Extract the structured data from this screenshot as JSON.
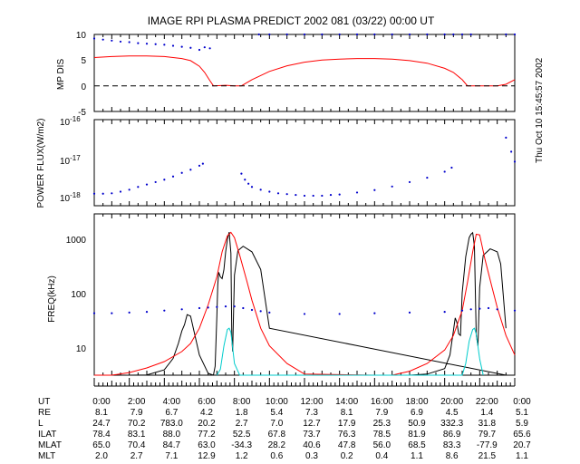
{
  "title": "IMAGE  RPI PLASMA PREDICT 2002 081 (03/22) 00:00 UT",
  "timestamp": "Thu Oct 10 15:45:57 2002",
  "colors": {
    "red": "#ff0000",
    "blue": "#0000cc",
    "cyan": "#00cccc",
    "black": "#000000"
  },
  "panel1": {
    "ylabel": "MP DIS",
    "yticks": [
      "10",
      "5",
      "0",
      "-5"
    ],
    "ylim": [
      -5,
      10
    ]
  },
  "panel2": {
    "ylabel": "POWER FLUX(W/m2)",
    "yticks": [
      {
        "base": "10",
        "exp": "-16"
      },
      {
        "base": "10",
        "exp": "-17"
      },
      {
        "base": "10",
        "exp": "-18"
      }
    ],
    "ylim_log": [
      -18.15,
      -16
    ]
  },
  "panel3": {
    "ylabel": "FREQ(kHz)",
    "yticks": [
      "1000",
      "100",
      "10"
    ],
    "ylim_log": [
      0.5,
      3.25
    ]
  },
  "axis": {
    "xlim": [
      0,
      24
    ],
    "xtick_labels": [
      "0:00",
      "2:00",
      "4:00",
      "6:00",
      "8:00",
      "10:00",
      "12:00",
      "14:00",
      "16:00",
      "18:00",
      "20:00",
      "22:00",
      "0:00"
    ]
  },
  "orbit_table": {
    "rows": [
      {
        "label": "UT",
        "values": [
          "0:00",
          "2:00",
          "4:00",
          "6:00",
          "8:00",
          "10:00",
          "12:00",
          "14:00",
          "16:00",
          "18:00",
          "20:00",
          "22:00",
          "0:00"
        ]
      },
      {
        "label": "RE",
        "values": [
          "8.1",
          "7.9",
          "6.7",
          "4.2",
          "1.8",
          "5.4",
          "7.3",
          "8.1",
          "7.9",
          "6.9",
          "4.5",
          "1.4",
          "5.1"
        ]
      },
      {
        "label": "L",
        "values": [
          "24.7",
          "70.2",
          "783.0",
          "20.2",
          "2.7",
          "7.0",
          "12.7",
          "17.9",
          "25.3",
          "50.9",
          "332.3",
          "31.8",
          "5.9"
        ]
      },
      {
        "label": "ILAT",
        "values": [
          "78.4",
          "83.1",
          "88.0",
          "77.2",
          "52.5",
          "67.8",
          "73.7",
          "76.3",
          "78.5",
          "81.9",
          "86.9",
          "79.7",
          "65.6"
        ]
      },
      {
        "label": "MLAT",
        "values": [
          "65.0",
          "70.4",
          "84.7",
          "63.0",
          "-34.3",
          "28.2",
          "40.6",
          "47.8",
          "56.0",
          "68.5",
          "83.3",
          "-77.9",
          "20.7"
        ]
      },
      {
        "label": "MLT",
        "values": [
          "2.0",
          "2.7",
          "7.1",
          "12.9",
          "1.2",
          "0.6",
          "0.3",
          "0.2",
          "0.4",
          "1.1",
          "8.6",
          "21.5",
          "1.1"
        ]
      }
    ]
  },
  "chart_data": [
    {
      "type": "line",
      "panel": "MP DIS",
      "ylabel": "MP DIS",
      "xlim": [
        0,
        24
      ],
      "ylim": [
        -5,
        10
      ],
      "series": [
        {
          "name": "MP distance (blue)",
          "color": "#0000cc",
          "style": "dots",
          "x": [
            0,
            0.5,
            1,
            1.5,
            2,
            2.5,
            3,
            3.5,
            4,
            4.5,
            5,
            5.5,
            6,
            6.3,
            6.6,
            9.4,
            10,
            11,
            12,
            13,
            14,
            15,
            16,
            17,
            18,
            19,
            20,
            20.5,
            21,
            21.5,
            23.5,
            24
          ],
          "y": [
            9.2,
            9,
            8.8,
            8.6,
            8.5,
            8.3,
            8.2,
            8.1,
            8,
            7.8,
            7.6,
            7.4,
            7.0,
            7.5,
            7.3,
            10.5,
            10.3,
            10.1,
            10,
            10,
            10,
            10,
            10,
            10.1,
            10.2,
            10.3,
            10.5,
            10.5,
            10.4,
            10.2,
            10.6,
            10.2
          ]
        },
        {
          "name": "MP distance (red)",
          "color": "#ff0000",
          "style": "line",
          "x": [
            0,
            1,
            2,
            3,
            4,
            5,
            5.5,
            6,
            6.3,
            6.6,
            6.8,
            7.5,
            8,
            8.4,
            9,
            10,
            11,
            12,
            13,
            14,
            15,
            16,
            17,
            18,
            19,
            20,
            20.5,
            21,
            21.3,
            22,
            23,
            23.5,
            24
          ],
          "y": [
            5.5,
            5.7,
            5.8,
            5.8,
            5.7,
            5.3,
            4.9,
            3.8,
            2.6,
            1.0,
            0,
            0.1,
            0,
            0,
            1.2,
            2.8,
            3.9,
            4.6,
            5.0,
            5.2,
            5.3,
            5.3,
            5.2,
            4.9,
            4.4,
            3.4,
            2.6,
            1.2,
            0,
            0,
            0,
            0.3,
            1.2
          ]
        },
        {
          "name": "zero line",
          "color": "#000000",
          "style": "dashed",
          "x": [
            0,
            24
          ],
          "y": [
            0,
            0
          ]
        }
      ]
    },
    {
      "type": "scatter",
      "panel": "POWER FLUX",
      "ylabel": "POWER FLUX(W/m2)",
      "yscale": "log",
      "xlim": [
        0,
        24
      ],
      "series": [
        {
          "name": "power flux",
          "color": "#0000cc",
          "x": [
            0,
            0.5,
            1,
            1.5,
            2,
            2.5,
            3,
            3.5,
            4,
            4.5,
            5,
            5.5,
            6,
            6.2,
            8.4,
            8.6,
            8.8,
            9,
            9.5,
            10,
            10.5,
            11,
            11.5,
            12,
            12.5,
            13,
            13.5,
            14,
            15,
            16,
            17,
            18,
            19,
            20,
            20.4,
            23.5,
            23.8,
            24
          ],
          "y": [
            -17.85,
            -17.85,
            -17.84,
            -17.8,
            -17.75,
            -17.68,
            -17.62,
            -17.56,
            -17.5,
            -17.42,
            -17.33,
            -17.25,
            -17.15,
            -17.1,
            -17.35,
            -17.5,
            -17.6,
            -17.68,
            -17.75,
            -17.8,
            -17.84,
            -17.86,
            -17.88,
            -17.9,
            -17.9,
            -17.9,
            -17.88,
            -17.87,
            -17.82,
            -17.76,
            -17.67,
            -17.56,
            -17.45,
            -17.3,
            -17.2,
            -16.45,
            -16.8,
            -17.05
          ]
        }
      ]
    },
    {
      "type": "line",
      "panel": "FREQ",
      "ylabel": "FREQ(kHz)",
      "yscale": "log",
      "xlim": [
        0,
        24
      ],
      "series": [
        {
          "name": "black",
          "color": "#000000",
          "style": "line",
          "x": [
            0,
            1,
            2,
            3,
            4,
            4.5,
            4.8,
            5,
            5.15,
            5.3,
            5.5,
            6,
            6.5,
            6.8,
            6.9,
            7,
            7.05,
            7.1,
            7.2,
            7.3,
            7.4,
            7.5,
            7.6,
            7.7,
            7.8,
            7.85,
            7.9,
            8,
            8.2,
            8.5,
            9,
            9.5,
            10,
            23.5,
            17,
            18,
            19,
            20,
            20.3,
            20.5,
            20.6,
            20.7,
            20.8,
            20.9,
            21,
            21.2,
            21.4,
            21.5,
            21.6,
            21.7,
            21.8,
            21.9,
            22,
            22.2,
            22.6,
            23,
            23.2,
            23.5
          ],
          "y": [
            3,
            3,
            3,
            3.2,
            3.9,
            6.1,
            11,
            18,
            23,
            34,
            32,
            7,
            3.4,
            3,
            4.5,
            32,
            110,
            180,
            150,
            140,
            200,
            400,
            650,
            870,
            380,
            14,
            8,
            160,
            420,
            500,
            400,
            200,
            20,
            3,
            3,
            3,
            3.3,
            4.1,
            7,
            18,
            30,
            25,
            16,
            15,
            80,
            330,
            700,
            800,
            850,
            500,
            15,
            10,
            100,
            350,
            450,
            400,
            250,
            20
          ]
        },
        {
          "name": "red",
          "color": "#ff0000",
          "style": "line",
          "x": [
            0,
            1,
            2,
            3,
            4,
            5,
            5.5,
            6,
            6.5,
            7,
            7.3,
            7.6,
            7.8,
            8,
            8.3,
            8.7,
            9,
            9.5,
            10,
            11,
            12,
            16,
            17,
            18,
            19,
            20,
            20.5,
            21,
            21.3,
            21.6,
            21.8,
            22,
            22.3,
            22.7,
            23,
            23.5,
            24
          ],
          "y": [
            2.9,
            3.1,
            3.5,
            4.2,
            5.4,
            8,
            11,
            20,
            50,
            150,
            400,
            750,
            860,
            700,
            350,
            130,
            60,
            20,
            10,
            5,
            3.3,
            3,
            3.1,
            3.7,
            5,
            8.5,
            15,
            40,
            120,
            400,
            800,
            780,
            300,
            100,
            45,
            15,
            7
          ]
        },
        {
          "name": "cyan",
          "color": "#00cccc",
          "style": "line",
          "x": [
            7,
            7.2,
            7.4,
            7.6,
            7.7,
            7.8,
            8,
            8.3,
            21,
            21.2,
            21.4,
            21.6,
            21.7,
            21.8,
            22,
            22.2
          ],
          "y": [
            3,
            4,
            10,
            19,
            20,
            17,
            5,
            3,
            3,
            5,
            12,
            19,
            20,
            16,
            6,
            3
          ]
        },
        {
          "name": "blue",
          "color": "#0000cc",
          "style": "dots",
          "x": [
            0,
            1,
            2,
            3,
            4,
            5,
            6,
            6.5,
            7,
            7.5,
            8,
            8.5,
            9,
            9.5,
            10,
            12,
            14,
            16,
            18,
            20,
            21,
            21.5,
            22,
            22.5,
            23,
            24
          ],
          "y": [
            36,
            36,
            37,
            38,
            40,
            42,
            44,
            45,
            46,
            47,
            47,
            44,
            41,
            39,
            37,
            35,
            35,
            36,
            37,
            38,
            40,
            42,
            43,
            44,
            42,
            40
          ]
        }
      ]
    }
  ]
}
